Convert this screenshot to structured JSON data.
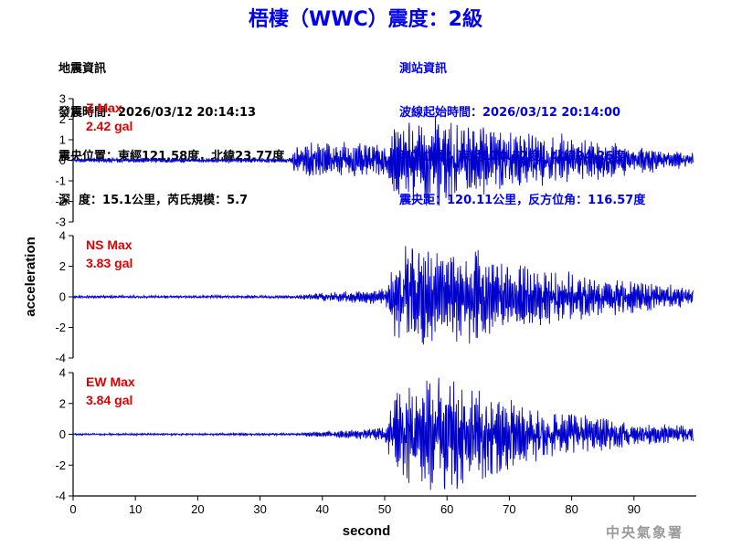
{
  "title": "梧棲（WWC）震度：2級",
  "quake_info": {
    "heading": "地震資訊",
    "origin_time": "發震時間：2026/03/12 20:14:13",
    "epicenter": "震央位置：東經121.58度，北緯23.77度",
    "depth_magnitude": "深  度：15.1公里，芮氏規模：5.7"
  },
  "station_info": {
    "heading": "測站資訊",
    "wave_onset": "波線起始時間：2026/03/12 20:14:00",
    "station_location": "測站位置：東經120.52度，北緯24.26度",
    "distance_azimuth": "震央距：120.11公里，反方位角：116.57度"
  },
  "watermark": "中央氣象署",
  "colors": {
    "trace": "#0000cc",
    "max_label": "#e00000",
    "title": "#0000ee"
  },
  "chart_data": {
    "type": "line",
    "xlabel": "second",
    "ylabel": "acceleration",
    "xlim": [
      0,
      100
    ],
    "xticks": [
      0,
      10,
      20,
      30,
      40,
      50,
      60,
      70,
      80,
      90
    ],
    "panels": [
      {
        "name": "Z",
        "max_label": "Z Max",
        "max_value": "2.42 gal",
        "ylim": [
          -3,
          3
        ],
        "yticks": [
          3,
          2,
          1,
          0,
          -1,
          -2,
          -3
        ],
        "trace_envelope": {
          "t": [
            0,
            35,
            35.5,
            40,
            45,
            50,
            52,
            55,
            58,
            62,
            66,
            70,
            75,
            80,
            85,
            90,
            95,
            100
          ],
          "amplitude": [
            0.12,
            0.12,
            0.8,
            1.0,
            0.85,
            0.9,
            1.9,
            2.2,
            2.4,
            2.0,
            1.9,
            1.4,
            1.3,
            1.1,
            1.0,
            0.7,
            0.5,
            0.35
          ]
        }
      },
      {
        "name": "NS",
        "max_label": "NS Max",
        "max_value": "3.83 gal",
        "ylim": [
          -4,
          4
        ],
        "yticks": [
          4,
          2,
          0,
          -2,
          -4
        ],
        "trace_envelope": {
          "t": [
            0,
            35,
            40,
            45,
            50,
            51.5,
            53,
            56,
            60,
            64,
            66,
            70,
            75,
            80,
            85,
            90,
            95,
            100
          ],
          "amplitude": [
            0.08,
            0.1,
            0.3,
            0.4,
            0.6,
            3.0,
            3.83,
            3.4,
            3.0,
            3.3,
            2.9,
            2.2,
            1.9,
            1.6,
            1.3,
            1.1,
            0.9,
            0.6
          ]
        }
      },
      {
        "name": "EW",
        "max_label": "EW Max",
        "max_value": "3.84 gal",
        "ylim": [
          -4,
          4
        ],
        "yticks": [
          4,
          2,
          0,
          -2,
          -4
        ],
        "trace_envelope": {
          "t": [
            0,
            35,
            40,
            45,
            50,
            51.5,
            55,
            58,
            60,
            63,
            66,
            70,
            75,
            80,
            85,
            90,
            95,
            100
          ],
          "amplitude": [
            0.06,
            0.08,
            0.2,
            0.3,
            0.5,
            2.8,
            3.5,
            3.7,
            3.84,
            3.5,
            3.2,
            2.4,
            1.7,
            1.4,
            1.1,
            0.8,
            0.7,
            0.6
          ]
        }
      }
    ]
  }
}
